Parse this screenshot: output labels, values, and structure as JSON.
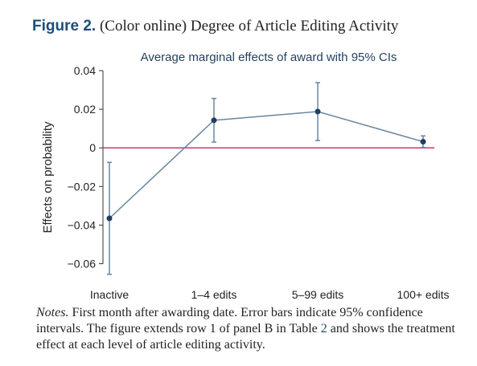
{
  "figure": {
    "label": "Figure 2.",
    "caption": "(Color online) Degree of Article Editing Activity"
  },
  "notes": {
    "label": "Notes.",
    "text_before": "First month after awarding date. Error bars indicate 95% confidence intervals. The figure extends row 1 of panel B in Table",
    "table_ref": "2",
    "text_after": "and shows the treatment effect at each level of article editing activity."
  },
  "colors": {
    "series": "#6a87a0",
    "marker": "#1f3f5f",
    "reference_line": "#d6336c"
  },
  "chart_data": {
    "type": "line",
    "title": "Average marginal effects of award with 95% CIs",
    "xlabel": "",
    "ylabel": "Effects on probability",
    "categories": [
      "Inactive",
      "1–4 edits",
      "5–99 edits",
      "100+ edits"
    ],
    "series": [
      {
        "values": [
          -0.0365,
          0.0143,
          0.0188,
          0.0032
        ],
        "ci_lower": [
          -0.0655,
          0.003,
          0.0038,
          0.0002
        ],
        "ci_upper": [
          -0.0075,
          0.0256,
          0.0338,
          0.0062
        ]
      }
    ],
    "ylim": [
      -0.066,
      0.04
    ],
    "yticks": [
      0.04,
      0.02,
      0,
      -0.02,
      -0.04,
      -0.06
    ],
    "ytick_labels": [
      "0.04",
      "0.02",
      "0",
      "−0.02",
      "−0.04",
      "−0.06"
    ],
    "reference_line_y": 0,
    "grid": false
  }
}
